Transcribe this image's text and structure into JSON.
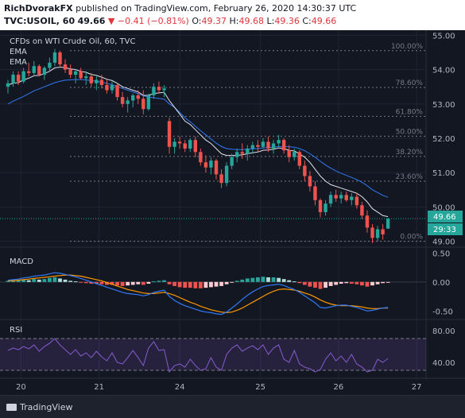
{
  "header": {
    "author": "RichDvorakFX",
    "published_text": "published on TradingView.com, February 26, 2020 14:30:37 UTC",
    "symbol": "TVC:USOIL, 60",
    "last": "49.66",
    "change": "▼ −0.41 (−0.81%)",
    "o_label": "O:",
    "o": "49.37",
    "h_label": "H:",
    "h": "49.68",
    "l_label": "L:",
    "l": "49.36",
    "c_label": "C:",
    "c": "49.66"
  },
  "legend": {
    "title": "CFDs on WTI Crude Oil, 60, TVC",
    "ema1": "EMA",
    "ema2": "EMA"
  },
  "macd_label": "MACD",
  "rsi_label": "RSI",
  "price_badge": "49.66",
  "countdown_badge": "29:33",
  "footer": {
    "brand": "TradingView"
  },
  "colors": {
    "up": "#26a69a",
    "down": "#ef5350",
    "ema_fast": "#e0e3eb",
    "ema_slow": "#3179f5",
    "macd_line": "#3179f5",
    "signal_line": "#ff9800",
    "rsi_line": "#7e57c2",
    "fib": "#787b86"
  },
  "chart_data": [
    {
      "type": "candlestick",
      "title": "CFDs on WTI Crude Oil, 60, TVC",
      "x_ticks": [
        "20",
        "21",
        "24",
        "25",
        "26",
        "27"
      ],
      "ylim": [
        48.9,
        55.1
      ],
      "y_ticks": [
        "55.00",
        "54.00",
        "53.00",
        "52.00",
        "51.00",
        "50.00",
        "49.00"
      ],
      "ohlc": [
        [
          53.5,
          53.7,
          53.3,
          53.6
        ],
        [
          53.6,
          53.95,
          53.5,
          53.85
        ],
        [
          53.85,
          53.95,
          53.55,
          53.65
        ],
        [
          53.65,
          54.05,
          53.6,
          53.95
        ],
        [
          53.95,
          54.2,
          53.8,
          53.9
        ],
        [
          53.9,
          54.25,
          53.85,
          54.1
        ],
        [
          54.1,
          54.15,
          53.8,
          53.85
        ],
        [
          53.85,
          54.1,
          53.7,
          54.05
        ],
        [
          54.05,
          54.35,
          53.95,
          54.2
        ],
        [
          54.2,
          54.6,
          54.1,
          54.5
        ],
        [
          54.5,
          54.55,
          54.05,
          54.15
        ],
        [
          54.15,
          54.3,
          53.9,
          54.0
        ],
        [
          54.0,
          54.15,
          53.75,
          53.85
        ],
        [
          53.85,
          54.0,
          53.6,
          53.95
        ],
        [
          53.95,
          54.05,
          53.7,
          53.75
        ],
        [
          53.75,
          53.95,
          53.55,
          53.8
        ],
        [
          53.8,
          53.9,
          53.5,
          53.6
        ],
        [
          53.6,
          53.8,
          53.4,
          53.7
        ],
        [
          53.7,
          53.85,
          53.45,
          53.55
        ],
        [
          53.55,
          53.7,
          53.3,
          53.4
        ],
        [
          53.4,
          53.65,
          53.3,
          53.55
        ],
        [
          53.55,
          53.6,
          53.1,
          53.2
        ],
        [
          53.2,
          53.35,
          52.9,
          53.0
        ],
        [
          53.0,
          53.2,
          52.75,
          53.1
        ],
        [
          53.1,
          53.3,
          52.9,
          53.25
        ],
        [
          53.25,
          53.4,
          53.0,
          53.15
        ],
        [
          53.15,
          53.4,
          52.7,
          52.85
        ],
        [
          52.85,
          53.3,
          52.8,
          53.25
        ],
        [
          53.25,
          53.6,
          53.15,
          53.5
        ],
        [
          53.5,
          53.65,
          53.3,
          53.4
        ],
        [
          53.4,
          53.55,
          53.2,
          53.45
        ],
        [
          52.5,
          52.6,
          51.55,
          51.75
        ],
        [
          51.75,
          52.0,
          51.55,
          51.9
        ],
        [
          51.9,
          52.05,
          51.7,
          51.85
        ],
        [
          51.85,
          51.95,
          51.6,
          51.7
        ],
        [
          51.7,
          52.0,
          51.6,
          51.95
        ],
        [
          51.95,
          52.05,
          51.45,
          51.6
        ],
        [
          51.6,
          51.7,
          51.2,
          51.3
        ],
        [
          51.3,
          51.5,
          51.0,
          51.15
        ],
        [
          51.15,
          51.45,
          50.95,
          51.35
        ],
        [
          51.35,
          51.4,
          50.8,
          50.95
        ],
        [
          50.95,
          51.1,
          50.55,
          50.7
        ],
        [
          50.7,
          51.3,
          50.6,
          51.2
        ],
        [
          51.2,
          51.55,
          51.1,
          51.45
        ],
        [
          51.45,
          51.7,
          51.3,
          51.6
        ],
        [
          51.6,
          51.85,
          51.4,
          51.55
        ],
        [
          51.55,
          51.8,
          51.35,
          51.7
        ],
        [
          51.7,
          51.9,
          51.55,
          51.8
        ],
        [
          51.8,
          51.95,
          51.6,
          51.75
        ],
        [
          51.75,
          52.0,
          51.7,
          51.9
        ],
        [
          51.9,
          52.05,
          51.6,
          51.7
        ],
        [
          51.7,
          51.95,
          51.55,
          51.85
        ],
        [
          51.85,
          52.1,
          51.75,
          51.95
        ],
        [
          51.95,
          52.0,
          51.55,
          51.65
        ],
        [
          51.65,
          51.8,
          51.3,
          51.45
        ],
        [
          51.45,
          51.7,
          51.35,
          51.6
        ],
        [
          51.6,
          51.65,
          51.1,
          51.2
        ],
        [
          51.2,
          51.35,
          50.75,
          50.9
        ],
        [
          50.9,
          51.05,
          50.45,
          50.6
        ],
        [
          50.6,
          50.75,
          50.05,
          50.2
        ],
        [
          50.2,
          50.25,
          49.7,
          49.85
        ],
        [
          49.85,
          50.2,
          49.75,
          50.1
        ],
        [
          50.1,
          50.45,
          50.0,
          50.35
        ],
        [
          50.35,
          50.5,
          50.15,
          50.25
        ],
        [
          50.25,
          50.45,
          50.1,
          50.35
        ],
        [
          50.35,
          50.45,
          50.15,
          50.2
        ],
        [
          50.2,
          50.4,
          50.05,
          50.3
        ],
        [
          50.3,
          50.4,
          49.95,
          50.05
        ],
        [
          50.05,
          50.15,
          49.65,
          49.75
        ],
        [
          49.75,
          49.9,
          49.25,
          49.4
        ],
        [
          49.4,
          49.5,
          48.95,
          49.1
        ],
        [
          49.1,
          49.45,
          49.0,
          49.35
        ],
        [
          49.35,
          49.5,
          49.05,
          49.2
        ],
        [
          49.37,
          49.68,
          49.36,
          49.66
        ]
      ],
      "ema_fast": [
        53.55,
        53.6,
        53.62,
        53.7,
        53.75,
        53.82,
        53.83,
        53.88,
        53.95,
        54.05,
        54.07,
        54.06,
        54.02,
        54,
        53.95,
        53.92,
        53.86,
        53.83,
        53.78,
        53.72,
        53.68,
        53.6,
        53.5,
        53.45,
        53.4,
        53.35,
        53.25,
        53.25,
        53.3,
        53.32,
        53.34,
        53.1,
        52.9,
        52.7,
        52.5,
        52.4,
        52.25,
        52.1,
        51.95,
        51.85,
        51.7,
        51.55,
        51.5,
        51.5,
        51.5,
        51.52,
        51.55,
        51.58,
        51.6,
        51.65,
        51.66,
        51.68,
        51.72,
        51.7,
        51.65,
        51.63,
        51.55,
        51.45,
        51.3,
        51.1,
        50.9,
        50.75,
        50.65,
        50.6,
        50.55,
        50.5,
        50.45,
        50.4,
        50.3,
        50.15,
        49.95,
        49.85,
        49.75,
        49.72
      ],
      "ema_slow": [
        53.0,
        53.08,
        53.15,
        53.22,
        53.3,
        53.38,
        53.44,
        53.5,
        53.56,
        53.62,
        53.66,
        53.69,
        53.7,
        53.71,
        53.71,
        53.7,
        53.68,
        53.66,
        53.63,
        53.6,
        53.56,
        53.51,
        53.45,
        53.4,
        53.35,
        53.3,
        53.24,
        53.2,
        53.18,
        53.16,
        53.14,
        53.0,
        52.9,
        52.75,
        52.6,
        52.48,
        52.35,
        52.22,
        52.1,
        51.98,
        51.86,
        51.76,
        51.7,
        51.68,
        51.67,
        51.67,
        51.68,
        51.69,
        51.7,
        51.72,
        51.73,
        51.74,
        51.76,
        51.76,
        51.75,
        51.74,
        51.7,
        51.64,
        51.55,
        51.45,
        51.33,
        51.22,
        51.13,
        51.05,
        50.98,
        50.92,
        50.86,
        50.8,
        50.72,
        50.62,
        50.5,
        50.42,
        50.34,
        50.28
      ],
      "fib_levels": [
        "100.00%",
        "78.60%",
        "61.80%",
        "50.00%",
        "38.20%",
        "23.60%",
        "0.00%"
      ],
      "fib_values": [
        54.55,
        53.48,
        52.64,
        52.06,
        51.47,
        50.75,
        49.0
      ]
    },
    {
      "type": "bar",
      "title": "MACD",
      "ylim": [
        -0.62,
        0.56
      ],
      "y_ticks": [
        "0.50",
        "0.00",
        "-0.50"
      ],
      "histogram": [
        0.02,
        0.03,
        0.03,
        0.04,
        0.03,
        0.05,
        0.04,
        0.05,
        0.07,
        0.08,
        0.06,
        0.04,
        0.02,
        0.01,
        -0.01,
        -0.02,
        -0.03,
        -0.03,
        -0.04,
        -0.05,
        -0.05,
        -0.06,
        -0.07,
        -0.06,
        -0.05,
        -0.04,
        -0.05,
        -0.03,
        0.01,
        0.02,
        0.03,
        -0.04,
        -0.07,
        -0.09,
        -0.1,
        -0.1,
        -0.11,
        -0.11,
        -0.1,
        -0.09,
        -0.08,
        -0.07,
        -0.04,
        -0.01,
        0.02,
        0.04,
        0.06,
        0.07,
        0.08,
        0.09,
        0.08,
        0.08,
        0.07,
        0.05,
        0.03,
        0.01,
        -0.02,
        -0.05,
        -0.08,
        -0.1,
        -0.12,
        -0.1,
        -0.07,
        -0.05,
        -0.03,
        -0.02,
        -0.03,
        -0.04,
        -0.06,
        -0.08,
        -0.06,
        -0.04,
        -0.02,
        -0.01
      ],
      "macd": [
        0.03,
        0.04,
        0.05,
        0.07,
        0.08,
        0.1,
        0.11,
        0.12,
        0.14,
        0.16,
        0.15,
        0.13,
        0.11,
        0.09,
        0.06,
        0.03,
        0.0,
        -0.03,
        -0.06,
        -0.09,
        -0.12,
        -0.15,
        -0.18,
        -0.2,
        -0.21,
        -0.22,
        -0.24,
        -0.22,
        -0.18,
        -0.16,
        -0.14,
        -0.25,
        -0.32,
        -0.37,
        -0.41,
        -0.44,
        -0.47,
        -0.5,
        -0.52,
        -0.53,
        -0.55,
        -0.56,
        -0.52,
        -0.45,
        -0.38,
        -0.3,
        -0.23,
        -0.17,
        -0.12,
        -0.08,
        -0.06,
        -0.05,
        -0.04,
        -0.06,
        -0.1,
        -0.13,
        -0.18,
        -0.24,
        -0.3,
        -0.36,
        -0.44,
        -0.45,
        -0.43,
        -0.41,
        -0.4,
        -0.4,
        -0.42,
        -0.44,
        -0.47,
        -0.5,
        -0.49,
        -0.47,
        -0.45,
        -0.44
      ],
      "signal": [
        0.02,
        0.02,
        0.03,
        0.04,
        0.05,
        0.06,
        0.07,
        0.08,
        0.09,
        0.1,
        0.11,
        0.12,
        0.12,
        0.11,
        0.1,
        0.08,
        0.06,
        0.04,
        0.02,
        -0.01,
        -0.04,
        -0.07,
        -0.1,
        -0.13,
        -0.15,
        -0.17,
        -0.19,
        -0.2,
        -0.2,
        -0.19,
        -0.18,
        -0.2,
        -0.23,
        -0.27,
        -0.31,
        -0.35,
        -0.38,
        -0.42,
        -0.45,
        -0.48,
        -0.5,
        -0.52,
        -0.53,
        -0.52,
        -0.49,
        -0.45,
        -0.4,
        -0.35,
        -0.3,
        -0.25,
        -0.2,
        -0.16,
        -0.13,
        -0.12,
        -0.13,
        -0.14,
        -0.16,
        -0.19,
        -0.22,
        -0.26,
        -0.31,
        -0.35,
        -0.38,
        -0.4,
        -0.41,
        -0.41,
        -0.41,
        -0.42,
        -0.43,
        -0.45,
        -0.46,
        -0.46,
        -0.45,
        -0.45
      ]
    },
    {
      "type": "line",
      "title": "RSI",
      "ylim": [
        22,
        92
      ],
      "y_ticks": [
        "80.00",
        "40.00"
      ],
      "band": [
        30,
        70
      ],
      "values": [
        55,
        58,
        56,
        60,
        57,
        62,
        54,
        60,
        64,
        70,
        62,
        56,
        50,
        56,
        48,
        52,
        46,
        54,
        47,
        42,
        52,
        40,
        38,
        46,
        55,
        46,
        36,
        58,
        66,
        55,
        56,
        28,
        36,
        38,
        34,
        44,
        36,
        30,
        32,
        46,
        34,
        30,
        50,
        58,
        62,
        54,
        58,
        61,
        56,
        62,
        50,
        58,
        62,
        44,
        40,
        55,
        38,
        34,
        32,
        28,
        31,
        44,
        52,
        42,
        48,
        40,
        50,
        38,
        34,
        28,
        30,
        44,
        40,
        45
      ]
    }
  ]
}
